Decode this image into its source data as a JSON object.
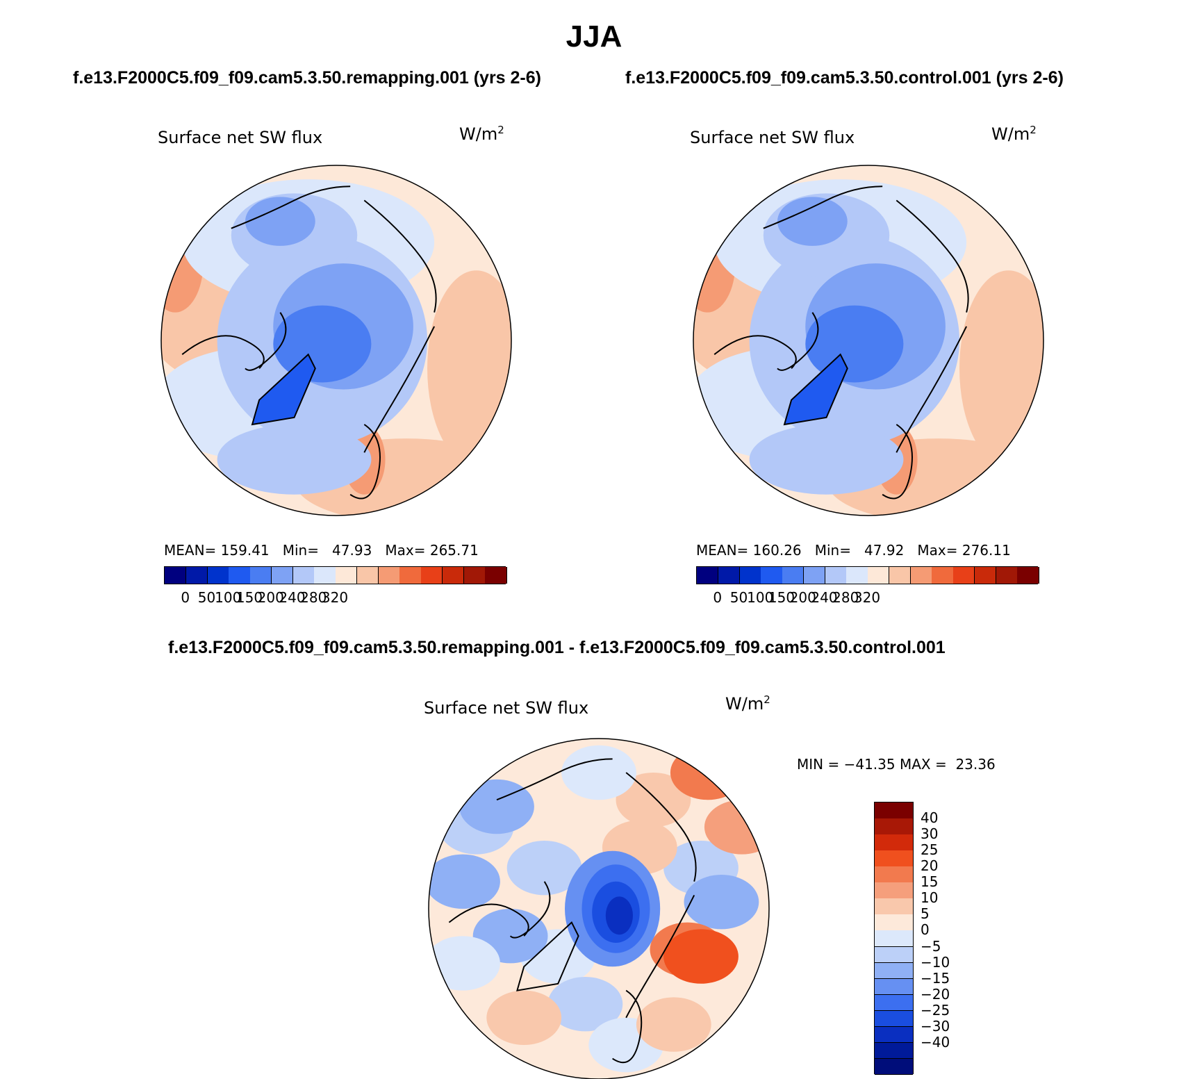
{
  "figure": {
    "title": "JJA",
    "case_a_title": "f.e13.F2000C5.f09_f09.cam5.3.50.remapping.001 (yrs 2-6)",
    "case_b_title": "f.e13.F2000C5.f09_f09.cam5.3.50.control.001 (yrs 2-6)",
    "diff_title": "f.e13.F2000C5.f09_f09.cam5.3.50.remapping.001 - f.e13.F2000C5.f09_f09.cam5.3.50.control.001"
  },
  "panels": {
    "a": {
      "variable": "Surface net SW flux",
      "units_base": "W/m",
      "units_exp": "2",
      "mean_label": "MEAN=",
      "mean_value": "159.41",
      "min_label": "Min=",
      "min_value": "47.93",
      "max_label": "Max=",
      "max_value": "265.71"
    },
    "b": {
      "variable": "Surface net SW flux",
      "units_base": "W/m",
      "units_exp": "2",
      "mean_label": "MEAN=",
      "mean_value": "160.26",
      "min_label": "Min=",
      "min_value": "47.92",
      "max_label": "Max=",
      "max_value": "276.11"
    },
    "diff": {
      "variable": "Surface net SW flux",
      "units_base": "W/m",
      "units_exp": "2",
      "min_label": "MIN =",
      "min_value": "−41.35",
      "max_label": "MAX =",
      "max_value": "23.36"
    }
  },
  "colorbar_main": {
    "colors": [
      "#00007f",
      "#0019a8",
      "#0033cc",
      "#1f5af0",
      "#4a7df2",
      "#7ea2f4",
      "#b3c8f8",
      "#dbe7fb",
      "#fde8d8",
      "#f9c6a8",
      "#f59b74",
      "#f06a3c",
      "#e84018",
      "#c92a0a",
      "#a11806",
      "#7a0000"
    ],
    "ticks": [
      "0",
      "50",
      "100",
      "150",
      "200",
      "240",
      "280",
      "320"
    ]
  },
  "colorbar_diff": {
    "colors": [
      "#7a0000",
      "#a81806",
      "#d22a0a",
      "#f0501e",
      "#f27a4e",
      "#f59f7c",
      "#f9c8ac",
      "#fde9da",
      "#dce8fb",
      "#bcd0f8",
      "#8fb0f5",
      "#6690f2",
      "#3c6ff0",
      "#1a4ee0",
      "#0a2fc0",
      "#001a99",
      "#000d7a"
    ],
    "ticks": [
      "40",
      "30",
      "25",
      "20",
      "15",
      "10",
      "5",
      "0",
      "−5",
      "−10",
      "−15",
      "−20",
      "−25",
      "−30",
      "−40"
    ]
  }
}
